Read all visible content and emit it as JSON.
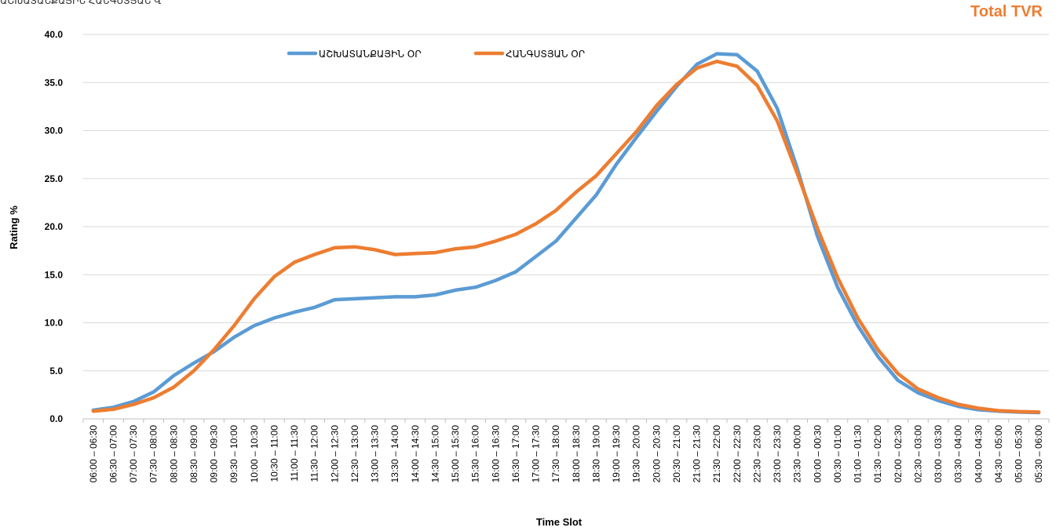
{
  "header": {
    "top_left_text": "ԱՇԽԱՏԱՆՔԱՅԻՆ ՀԱՆԳՍՏՅԱՆ Վ",
    "corner_title": "Total TVR"
  },
  "colors": {
    "series1": "#5B9BD5",
    "series2": "#ED7D31",
    "grid": "#d9d9d9",
    "axis": "#bfbfbf",
    "text": "#000000"
  },
  "chart_data": {
    "type": "line",
    "title": "Total TVR",
    "xlabel": "Time Slot",
    "ylabel": "Rating %",
    "ylim": [
      0,
      40
    ],
    "yticks": [
      "0.0",
      "5.0",
      "10.0",
      "15.0",
      "20.0",
      "25.0",
      "30.0",
      "35.0",
      "40.0"
    ],
    "grid": true,
    "legend_position": "top-left",
    "categories": [
      "06:00 – 06:30",
      "06:30 – 07:00",
      "07:00 – 07:30",
      "07:30 – 08:00",
      "08:00 – 08:30",
      "08:30 – 09:00",
      "09:00 – 09:30",
      "09:30 – 10:00",
      "10:00 – 10:30",
      "10:30 – 11:00",
      "11:00 – 11:30",
      "11:30 – 12:00",
      "12:00 – 12:30",
      "12:30 – 13:00",
      "13:00 – 13:30",
      "13:30 – 14:00",
      "14:00 – 14:30",
      "14:30 – 15:00",
      "15:00 – 15:30",
      "15:30 – 16:00",
      "16:00 – 16:30",
      "16:30 – 17:00",
      "17:00 – 17:30",
      "17:30 – 18:00",
      "18:00 – 18:30",
      "18:30 – 19:00",
      "19:00 – 19:30",
      "19:30 – 20:00",
      "20:00 – 20:30",
      "20:30 – 21:00",
      "21:00 – 21:30",
      "21:30 – 22:00",
      "22:00 – 22:30",
      "22:30 – 23:00",
      "23:00 – 23:30",
      "23:30 – 00:00",
      "00:00 – 00:30",
      "00:30 – 01:00",
      "01:00 – 01:30",
      "01:30 – 02:00",
      "02:00 – 02:30",
      "02:30 – 03:00",
      "03:00 – 03:30",
      "03:30 – 04:00",
      "04:00 – 04:30",
      "04:30 – 05:00",
      "05:00 – 05:30",
      "05:30 – 06:00"
    ],
    "series": [
      {
        "name": "ԱՇԽԱՏԱՆՔԱՅԻՆ ՕՐ",
        "color": "#5B9BD5",
        "values": [
          0.9,
          1.2,
          1.8,
          2.8,
          4.5,
          5.8,
          7.0,
          8.5,
          9.7,
          10.5,
          11.1,
          11.6,
          12.4,
          12.5,
          12.6,
          12.7,
          12.7,
          12.9,
          13.4,
          13.7,
          14.4,
          15.3,
          16.9,
          18.5,
          20.9,
          23.3,
          26.5,
          29.3,
          32.0,
          34.6,
          36.9,
          38.0,
          37.9,
          36.2,
          32.3,
          26.0,
          19.0,
          13.7,
          9.7,
          6.5,
          4.0,
          2.7,
          1.9,
          1.3,
          0.95,
          0.8,
          0.7,
          0.65
        ]
      },
      {
        "name": "ՀԱՆԳՍՏՅԱՆ ՕՐ",
        "color": "#ED7D31",
        "values": [
          0.8,
          1.0,
          1.5,
          2.2,
          3.3,
          5.0,
          7.2,
          9.7,
          12.5,
          14.8,
          16.3,
          17.1,
          17.8,
          17.9,
          17.6,
          17.1,
          17.2,
          17.3,
          17.7,
          17.9,
          18.5,
          19.2,
          20.3,
          21.7,
          23.6,
          25.3,
          27.6,
          29.9,
          32.6,
          34.8,
          36.5,
          37.2,
          36.7,
          34.7,
          31.0,
          25.5,
          19.8,
          14.7,
          10.5,
          7.2,
          4.7,
          3.1,
          2.2,
          1.5,
          1.1,
          0.85,
          0.75,
          0.7
        ]
      }
    ]
  }
}
